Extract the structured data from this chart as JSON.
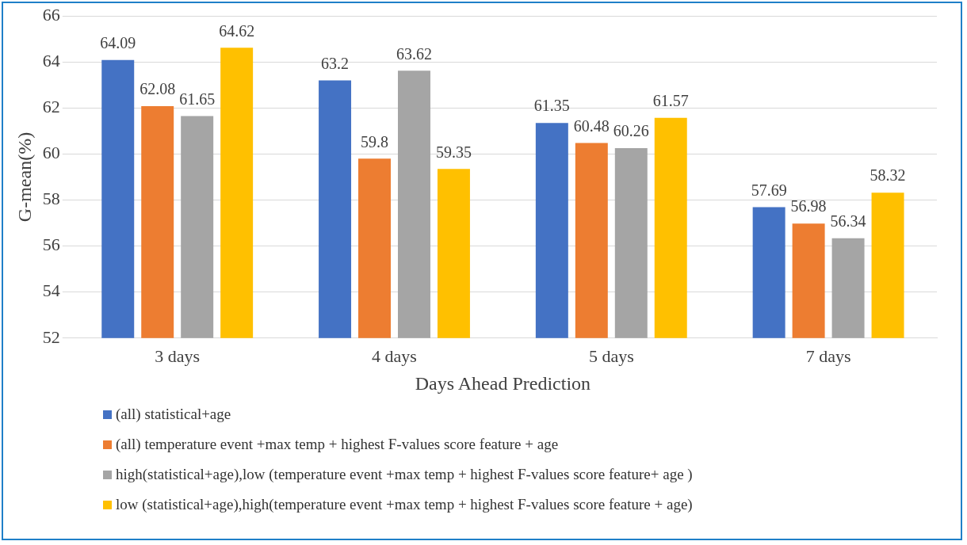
{
  "chart_data": {
    "type": "bar",
    "xlabel": "Days Ahead Prediction",
    "ylabel": "G-mean(%)",
    "categories": [
      "3 days",
      "4 days",
      "5 days",
      "7 days"
    ],
    "series": [
      {
        "name": "(all) statistical+age",
        "color": "#4472c4",
        "values": [
          64.09,
          63.2,
          61.35,
          57.69
        ]
      },
      {
        "name": "(all) temperature event +max temp  + highest F-values score feature  + age",
        "color": "#ed7d31",
        "values": [
          62.08,
          59.8,
          60.48,
          56.98
        ]
      },
      {
        "name": "high(statistical+age),low (temperature event +max temp  + highest F-values score feature+ age )",
        "color": "#a5a5a5",
        "values": [
          61.65,
          63.62,
          60.26,
          56.34
        ]
      },
      {
        "name": "low (statistical+age),high(temperature event +max temp  + highest F-values score feature + age)",
        "color": "#ffc000",
        "values": [
          64.62,
          59.35,
          61.57,
          58.32
        ]
      }
    ],
    "ylim": [
      52,
      66
    ],
    "yticks": [
      52,
      54,
      56,
      58,
      60,
      62,
      64,
      66
    ],
    "grid": "y",
    "legend": "bottom",
    "data_labels": true
  }
}
